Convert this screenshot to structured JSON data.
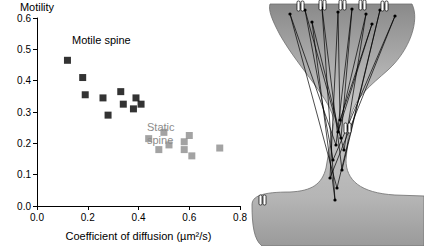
{
  "chart_data": {
    "type": "scatter",
    "y_label": "Motility",
    "x_label": "Coefficient of diffusion (µm²/s)",
    "xlim": [
      0,
      0.8
    ],
    "xticks": [
      {
        "value": 0,
        "label": "0.0"
      },
      0.2,
      0.4,
      0.6,
      0.8
    ],
    "ylim": [
      0,
      0.6
    ],
    "yticks": [
      {
        "value": 0,
        "label": "0.0"
      },
      0.1,
      0.2,
      0.3,
      0.4,
      0.5,
      0.6
    ],
    "grid": false,
    "series": [
      {
        "name": "Motile spine",
        "color": "#000000",
        "marker": "square",
        "x": [
          0.12,
          0.18,
          0.19,
          0.26,
          0.28,
          0.33,
          0.34,
          0.38,
          0.39,
          0.41
        ],
        "values": [
          0.465,
          0.41,
          0.355,
          0.345,
          0.29,
          0.365,
          0.325,
          0.31,
          0.345,
          0.325
        ]
      },
      {
        "name": "Static spine",
        "color": "#8c8c8c",
        "marker": "square",
        "x": [
          0.44,
          0.48,
          0.5,
          0.52,
          0.58,
          0.58,
          0.6,
          0.61,
          0.72
        ],
        "values": [
          0.215,
          0.18,
          0.235,
          0.195,
          0.205,
          0.18,
          0.225,
          0.16,
          0.185
        ]
      }
    ]
  }
}
